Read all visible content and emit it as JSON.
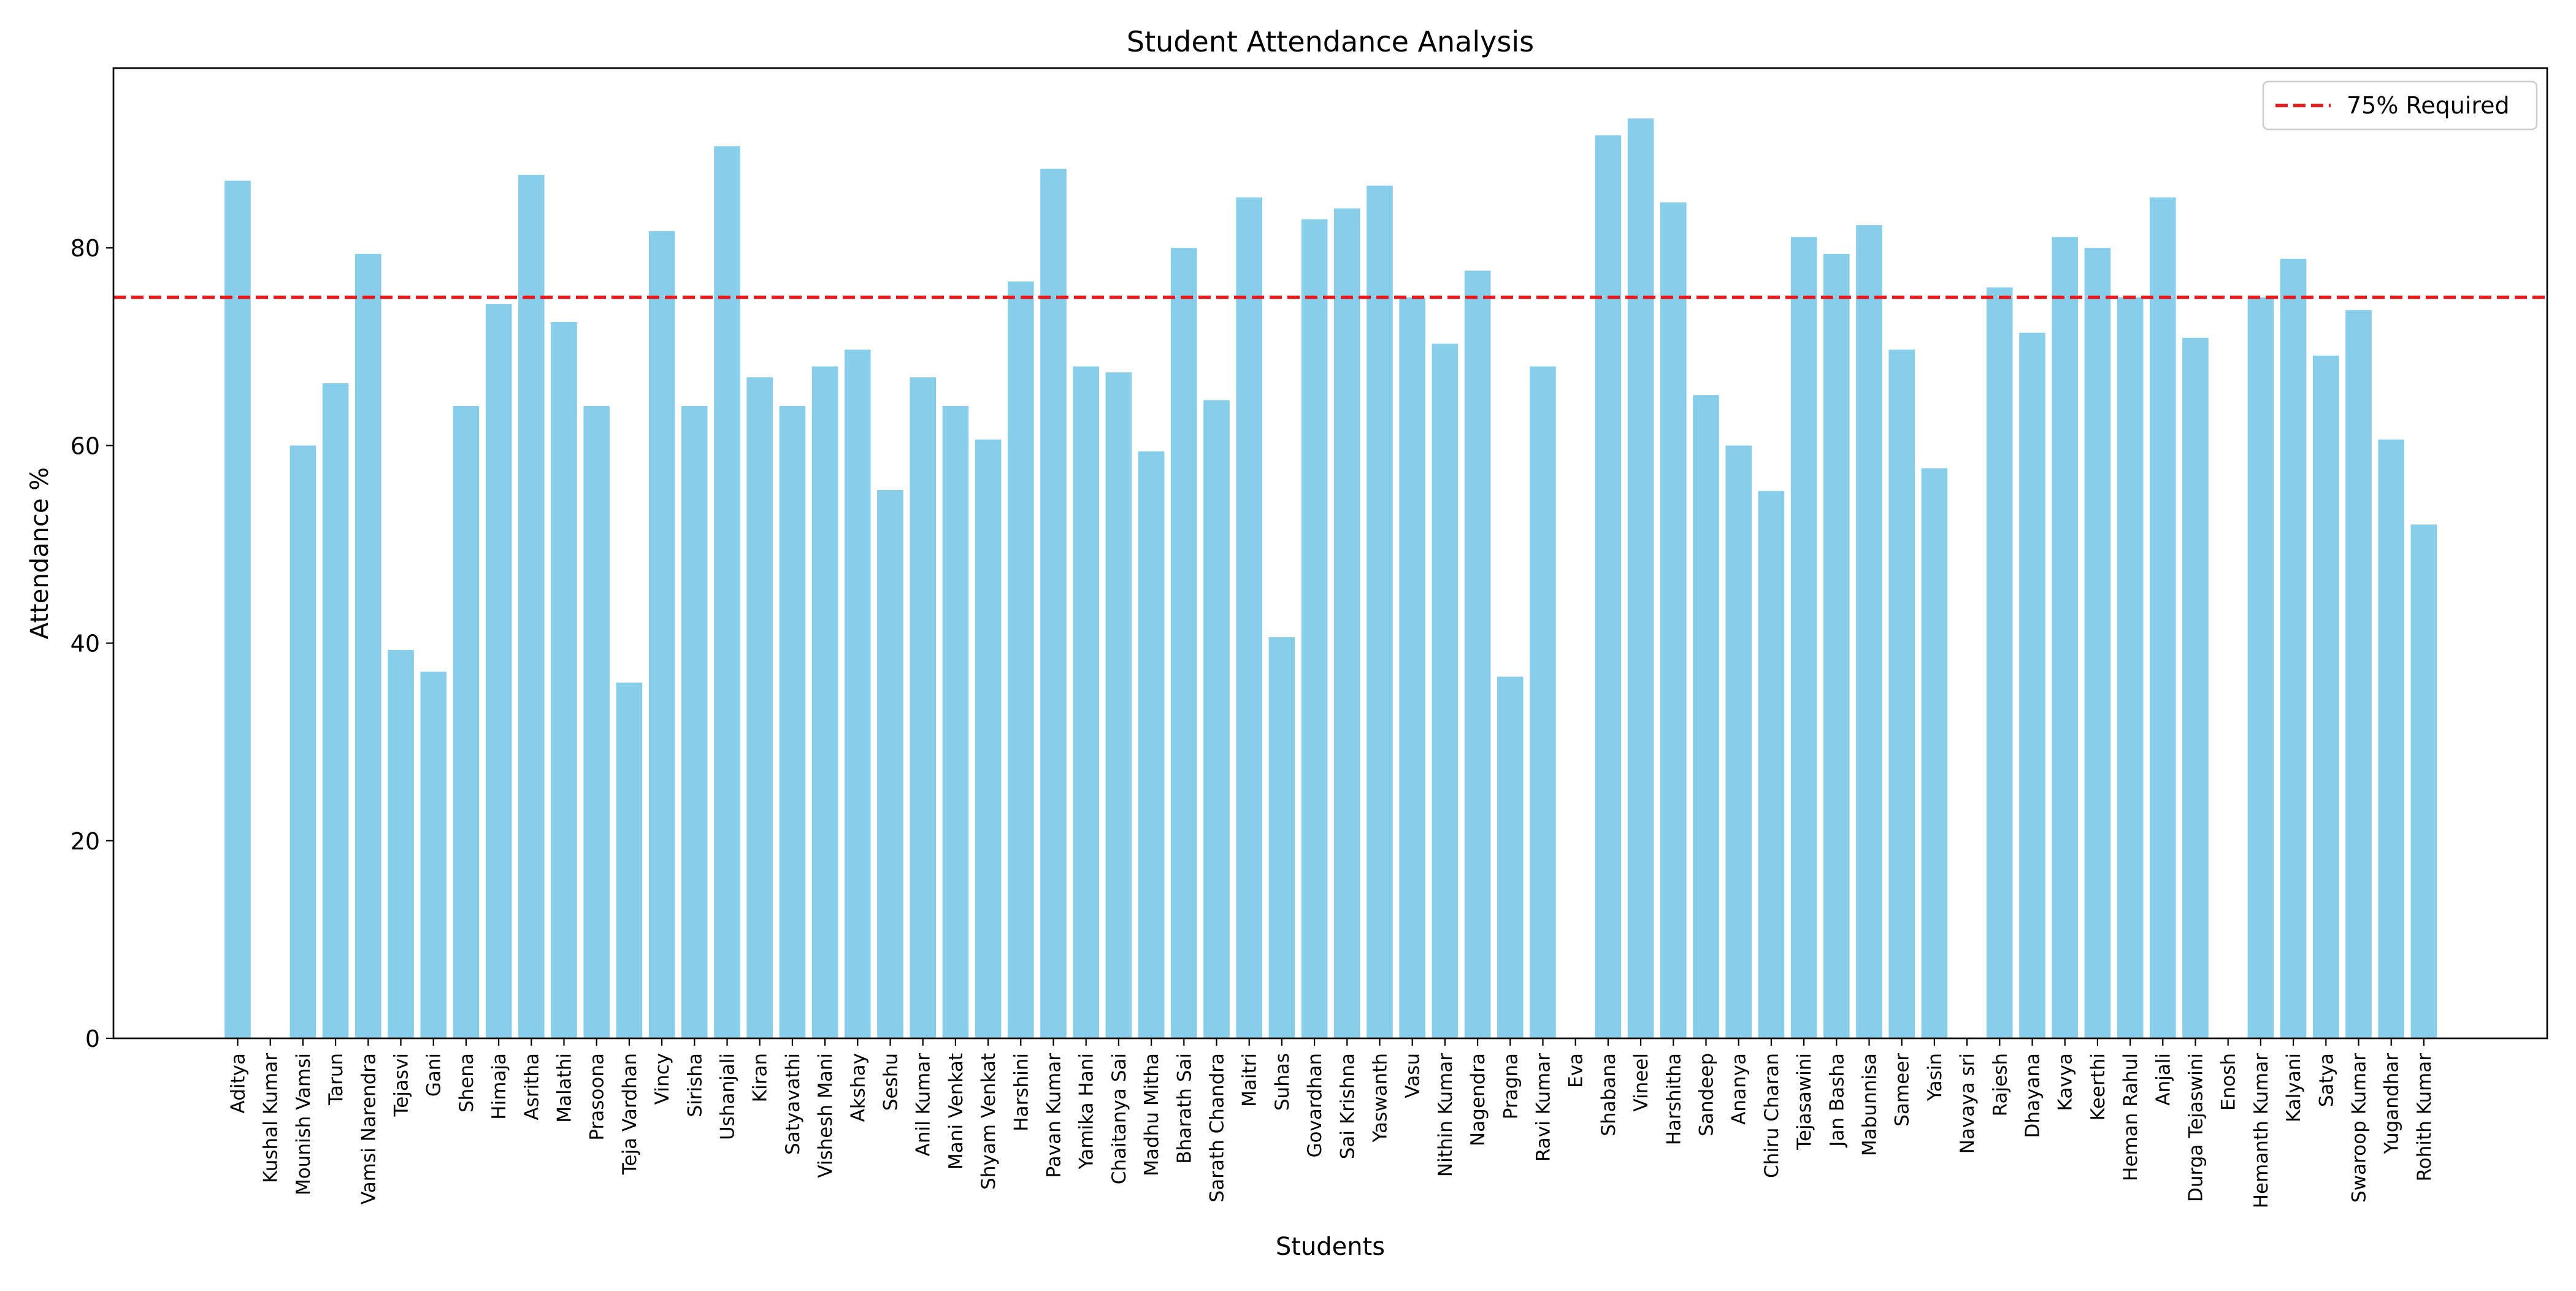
{
  "chart_data": {
    "type": "bar",
    "title": "Student Attendance Analysis",
    "xlabel": "Students",
    "ylabel": "Attendance %",
    "ylim": [
      0,
      98.2
    ],
    "yticks": [
      0,
      20,
      40,
      60,
      80
    ],
    "grid": false,
    "legend_position": "top-right",
    "bar_color": "#87CEEB",
    "threshold": {
      "label": "75% Required",
      "value": 75,
      "color": "#e31a1c",
      "style": "dashed"
    },
    "categories": [
      "Aditya",
      "Kushal Kumar",
      "Mounish Vamsi",
      "Tarun",
      "Vamsi Narendra",
      "Tejasvi",
      "Gani",
      "Shena",
      "Himaja",
      "Asritha",
      "Malathi",
      "Prasoona",
      "Teja Vardhan",
      "Vincy",
      "Sirisha",
      "Ushanjali",
      "Kiran",
      "Satyavathi",
      "Vishesh Mani",
      "Akshay",
      "Seshu",
      "Anil Kumar",
      "Mani Venkat",
      "Shyam Venkat",
      "Harshini",
      "Pavan Kumar",
      "Yamika Hani",
      "Chaitanya Sai",
      "Madhu Mitha",
      "Bharath Sai",
      "Sarath Chandra",
      "Maitri",
      "Suhas",
      "Govardhan",
      "Sai Krishna",
      "Yaswanth",
      "Vasu",
      "Nithin Kumar",
      "Nagendra",
      "Pragna",
      "Ravi Kumar",
      "Eva",
      "Shabana",
      "Vineel",
      "Harshitha",
      "Sandeep",
      "Ananya",
      "Chiru Charan",
      "Tejasawini",
      "Jan Basha",
      "Mabunnisa",
      "Sameer",
      "Yasin",
      "Navaya sri",
      "Rajesh",
      "Dhayana",
      "Kavya",
      "Keerthi",
      "Heman Rahul",
      "Anjali",
      "Durga Tejaswini",
      "Enosh",
      "Hemanth Kumar",
      "Kalyani",
      "Satya",
      "Swaroop Kumar",
      "Yugandhar",
      "Rohith Kumar"
    ],
    "values": [
      86.8,
      0,
      60.0,
      66.3,
      79.4,
      39.3,
      37.1,
      64.0,
      74.3,
      87.4,
      72.5,
      64.0,
      36.0,
      81.7,
      64.0,
      90.3,
      66.9,
      64.0,
      68.0,
      69.7,
      55.5,
      66.9,
      64.0,
      60.6,
      76.6,
      88.0,
      68.0,
      67.4,
      59.4,
      80.0,
      64.6,
      85.1,
      40.6,
      82.9,
      84.0,
      86.3,
      75.0,
      70.3,
      77.7,
      36.6,
      68.0,
      0,
      91.4,
      93.1,
      84.6,
      65.1,
      60.0,
      55.4,
      81.1,
      79.4,
      82.3,
      69.7,
      57.7,
      0,
      76.0,
      71.4,
      81.1,
      80.0,
      75.0,
      85.1,
      70.9,
      0,
      75.0,
      78.9,
      69.1,
      73.7,
      60.6,
      52.0
    ]
  }
}
